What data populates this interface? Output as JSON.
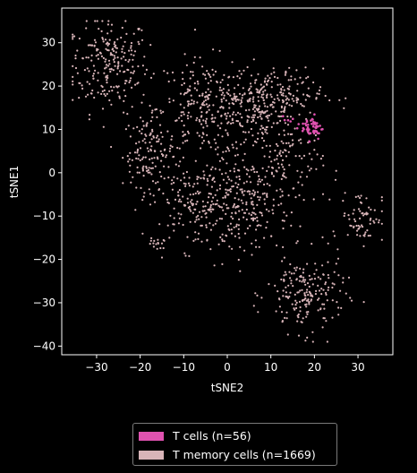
{
  "chart_data": {
    "type": "scatter",
    "title": "",
    "xlabel": "tSNE2",
    "ylabel": "tSNE1",
    "xlim": [
      -38,
      38
    ],
    "ylim": [
      -42,
      38
    ],
    "xticks": [
      -30,
      -20,
      -10,
      0,
      10,
      20,
      30
    ],
    "yticks": [
      -40,
      -30,
      -20,
      -10,
      0,
      10,
      20,
      30
    ],
    "xtick_labels": [
      "−30",
      "−20",
      "−10",
      "0",
      "10",
      "20",
      "30"
    ],
    "ytick_labels": [
      "−40",
      "−30",
      "−20",
      "−10",
      "0",
      "10",
      "20",
      "30"
    ],
    "grid": false,
    "legend_position": "below",
    "series": [
      {
        "name": "T memory cells (n=1669)",
        "color": "#d8b4b8",
        "n": 1669,
        "clusters": [
          {
            "cx": -27,
            "cy": 25,
            "sx": 4.5,
            "sy": 5.5,
            "n": 230
          },
          {
            "cx": -18,
            "cy": 5,
            "sx": 3,
            "sy": 4,
            "n": 120
          },
          {
            "cx": -5,
            "cy": 15,
            "sx": 5.5,
            "sy": 5.5,
            "n": 230
          },
          {
            "cx": 7,
            "cy": 13,
            "sx": 4,
            "sy": 4.5,
            "n": 130
          },
          {
            "cx": -6,
            "cy": -7,
            "sx": 6,
            "sy": 5.5,
            "n": 240
          },
          {
            "cx": 5,
            "cy": -7,
            "sx": 4.5,
            "sy": 5,
            "n": 150
          },
          {
            "cx": 14,
            "cy": 2,
            "sx": 4,
            "sy": 5,
            "n": 110
          },
          {
            "cx": 18,
            "cy": -28,
            "sx": 4.5,
            "sy": 4.5,
            "n": 200
          },
          {
            "cx": 31,
            "cy": -10,
            "sx": 2.5,
            "sy": 3,
            "n": 70
          },
          {
            "cx": -17,
            "cy": -17,
            "sx": 1.2,
            "sy": 1.2,
            "n": 15
          },
          {
            "cx": 10,
            "cy": 18,
            "sx": 6,
            "sy": 3,
            "n": 174
          }
        ]
      },
      {
        "name": "T cells (n=56)",
        "color": "#e052b0",
        "n": 56,
        "clusters": [
          {
            "cx": 19.5,
            "cy": 10.5,
            "sx": 1.2,
            "sy": 1.4,
            "n": 50
          },
          {
            "cx": 14,
            "cy": 12,
            "sx": 1.5,
            "sy": 1,
            "n": 6
          }
        ]
      }
    ]
  },
  "legend": {
    "items": [
      {
        "label": "T cells (n=56)",
        "color": "#e052b0"
      },
      {
        "label": "T memory cells (n=1669)",
        "color": "#d8b4b8"
      }
    ]
  }
}
